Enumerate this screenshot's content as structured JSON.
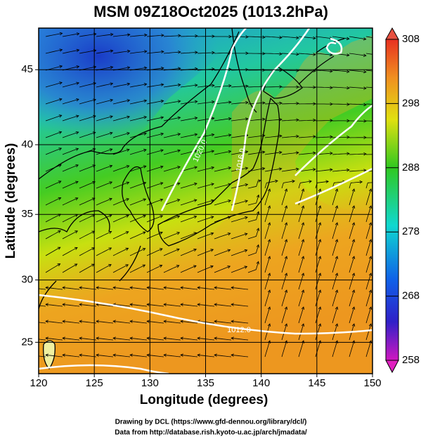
{
  "title": "MSM 09Z18Oct2025 (1013.2hPa)",
  "x_axis": {
    "label": "Longitude (degrees)",
    "lim": [
      120,
      150
    ],
    "ticks": [
      120,
      125,
      130,
      135,
      140,
      145,
      150
    ]
  },
  "y_axis": {
    "label": "Latitude  (degrees)",
    "lim": [
      22.4,
      47.6
    ],
    "ticks": [
      25,
      30,
      35,
      40,
      45
    ],
    "projection": "mercator"
  },
  "colorbar": {
    "lim": [
      258,
      308
    ],
    "ticks": [
      258,
      268,
      278,
      288,
      298,
      308
    ]
  },
  "contour_labels": [
    "1020.0",
    "1016.0",
    "1012.0"
  ],
  "footer": [
    "Drawing by DCL (https://www.gfd-dennou.org/library/dcl/)",
    "Data from http://database.rish.kyoto-u.ac.jp/arch/jmadata/"
  ]
}
